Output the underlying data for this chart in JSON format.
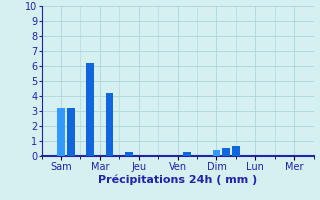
{
  "title": "",
  "xlabel": "Précipitations 24h ( mm )",
  "ylabel": "",
  "bg_color": "#d4f0f0",
  "grid_color": "#b0d4d4",
  "axis_color": "#2222aa",
  "tick_label_color": "#2222aa",
  "xlabel_color": "#2222aa",
  "ylim": [
    0,
    10
  ],
  "yticks": [
    0,
    1,
    2,
    3,
    4,
    5,
    6,
    7,
    8,
    9,
    10
  ],
  "day_labels": [
    "Sam",
    "Mar",
    "Jeu",
    "Ven",
    "Dim",
    "Lun",
    "Mer"
  ],
  "day_positions": [
    1,
    3,
    5,
    7,
    9,
    11,
    13
  ],
  "xlim": [
    0,
    14
  ],
  "bars": [
    {
      "x": 1.0,
      "height": 3.2,
      "color": "#3399ff"
    },
    {
      "x": 1.5,
      "height": 3.2,
      "color": "#1166dd"
    },
    {
      "x": 2.5,
      "height": 6.2,
      "color": "#1166dd"
    },
    {
      "x": 3.5,
      "height": 4.2,
      "color": "#1166dd"
    },
    {
      "x": 4.5,
      "height": 0.3,
      "color": "#1166dd"
    },
    {
      "x": 7.5,
      "height": 0.3,
      "color": "#1166dd"
    },
    {
      "x": 9.0,
      "height": 0.4,
      "color": "#3399ff"
    },
    {
      "x": 9.5,
      "height": 0.55,
      "color": "#1166dd"
    },
    {
      "x": 10.0,
      "height": 0.7,
      "color": "#1166dd"
    }
  ],
  "bar_width": 0.4,
  "minor_tick_interval": 1
}
